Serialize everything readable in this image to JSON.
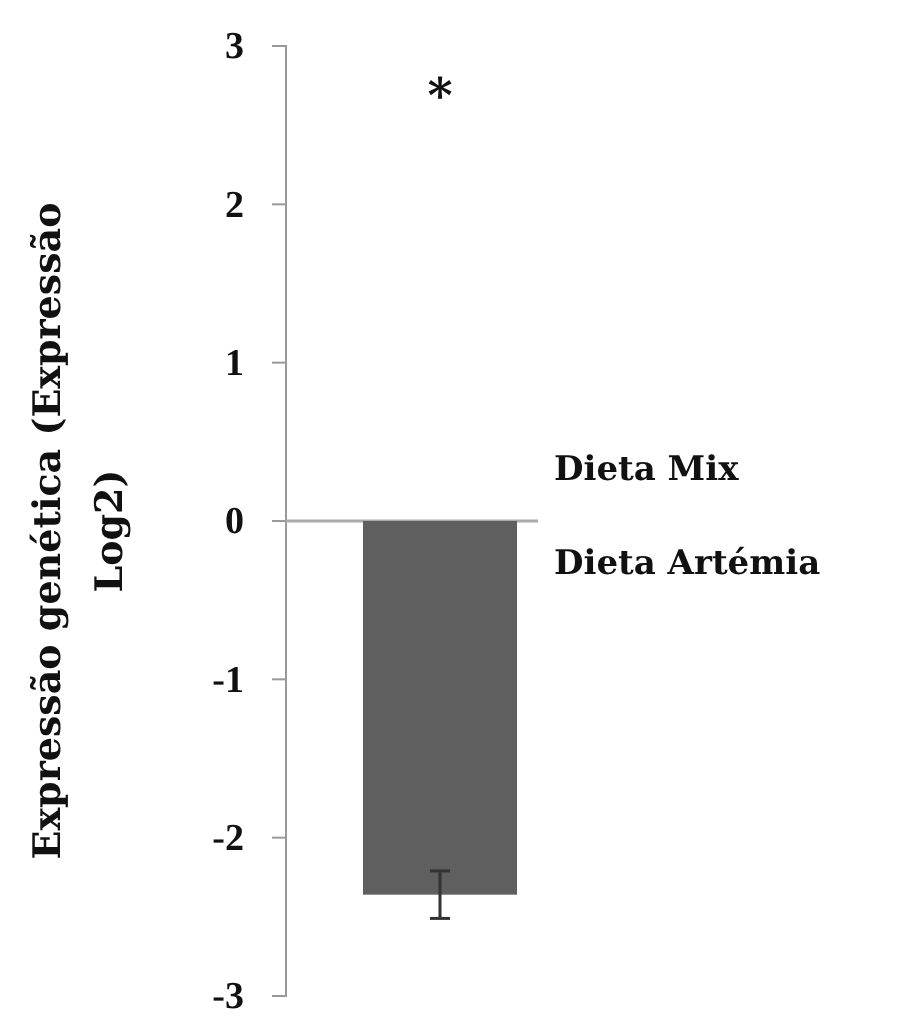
{
  "chart_data": {
    "type": "bar",
    "ylabel": "Expressão genética (Expressão Log2)",
    "categories": [
      null
    ],
    "series": [
      {
        "color": "#5f5f5f",
        "values": [
          -2.36
        ],
        "errors": [
          0.15
        ]
      }
    ],
    "ylim": [
      -3,
      3
    ],
    "yticks": [
      -3,
      -2,
      -1,
      0,
      1,
      2,
      3
    ],
    "annotations": [
      "*",
      "Dieta Mix",
      "Dieta Artémia"
    ]
  }
}
